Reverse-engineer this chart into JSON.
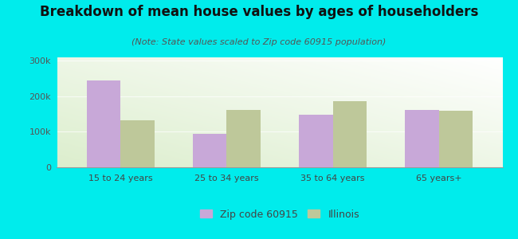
{
  "title": "Breakdown of mean house values by ages of householders",
  "subtitle": "(Note: State values scaled to Zip code 60915 population)",
  "categories": [
    "15 to 24 years",
    "25 to 34 years",
    "35 to 64 years",
    "65 years+"
  ],
  "zip_values": [
    245000,
    95000,
    148000,
    162000
  ],
  "il_values": [
    133000,
    162000,
    187000,
    160000
  ],
  "zip_color": "#c8a8d8",
  "il_color": "#bec89a",
  "background_outer": "#00ecec",
  "ylim": [
    0,
    310000
  ],
  "yticks": [
    0,
    100000,
    200000,
    300000
  ],
  "ytick_labels": [
    "0",
    "100k",
    "200k",
    "300k"
  ],
  "legend_zip_label": "Zip code 60915",
  "legend_il_label": "Illinois",
  "bar_width": 0.32,
  "title_fontsize": 12,
  "subtitle_fontsize": 8,
  "tick_fontsize": 8,
  "legend_fontsize": 9
}
